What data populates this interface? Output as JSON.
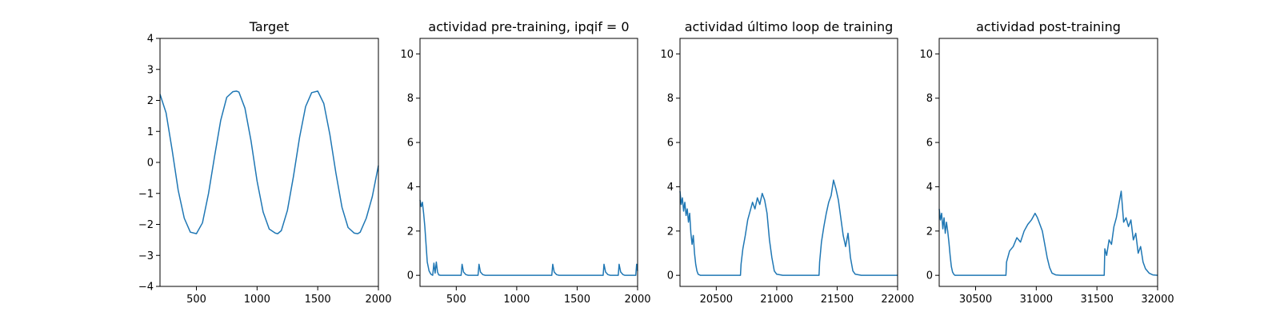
{
  "line_color": "#1f77b4",
  "chart_data": [
    {
      "type": "line",
      "title": "Target",
      "xlabel": "",
      "ylabel": "",
      "xlim": [
        200,
        2000
      ],
      "ylim": [
        -4,
        4
      ],
      "x_ticks": [
        500,
        1000,
        1500,
        2000
      ],
      "y_ticks": [
        -4,
        -3,
        -2,
        -1,
        0,
        1,
        2,
        3,
        4
      ],
      "series": [
        {
          "x": [
            200,
            250,
            300,
            350,
            400,
            450,
            500,
            550,
            600,
            650,
            700,
            750,
            800,
            830,
            850,
            900,
            950,
            1000,
            1050,
            1100,
            1150,
            1170,
            1200,
            1250,
            1300,
            1350,
            1400,
            1450,
            1500,
            1550,
            1600,
            1650,
            1700,
            1750,
            1800,
            1830,
            1850,
            1900,
            1950,
            2000
          ],
          "y": [
            2.2,
            1.6,
            0.4,
            -0.9,
            -1.8,
            -2.25,
            -2.3,
            -1.95,
            -1.0,
            0.2,
            1.35,
            2.1,
            2.28,
            2.3,
            2.27,
            1.75,
            0.7,
            -0.6,
            -1.6,
            -2.15,
            -2.28,
            -2.3,
            -2.2,
            -1.55,
            -0.45,
            0.8,
            1.8,
            2.25,
            2.3,
            1.9,
            0.9,
            -0.35,
            -1.45,
            -2.1,
            -2.28,
            -2.3,
            -2.25,
            -1.8,
            -1.1,
            -0.1
          ]
        }
      ]
    },
    {
      "type": "line",
      "title": "actividad pre-training, ipqif = 0",
      "xlabel": "",
      "ylabel": "",
      "xlim": [
        200,
        2000
      ],
      "ylim": [
        -0.5,
        10.7
      ],
      "x_ticks": [
        500,
        1000,
        1500,
        2000
      ],
      "y_ticks": [
        0,
        2,
        4,
        6,
        8,
        10
      ],
      "series": [
        {
          "x": [
            200,
            210,
            220,
            230,
            240,
            250,
            260,
            275,
            290,
            305,
            315,
            325,
            335,
            345,
            355,
            370,
            540,
            548,
            560,
            580,
            600,
            680,
            688,
            700,
            720,
            740,
            1290,
            1298,
            1310,
            1330,
            1350,
            1715,
            1722,
            1735,
            1755,
            1775,
            1840,
            1847,
            1860,
            1880,
            1895,
            1985,
            1992,
            2000
          ],
          "y": [
            3.4,
            3.1,
            3.3,
            2.8,
            2.2,
            1.4,
            0.6,
            0.2,
            0.05,
            0.0,
            0.55,
            0.1,
            0.6,
            0.15,
            0.02,
            0.0,
            0.0,
            0.5,
            0.15,
            0.03,
            0.0,
            0.0,
            0.5,
            0.15,
            0.03,
            0.0,
            0.0,
            0.5,
            0.15,
            0.03,
            0.0,
            0.0,
            0.5,
            0.15,
            0.03,
            0.0,
            0.0,
            0.5,
            0.15,
            0.03,
            0.0,
            0.0,
            0.5,
            0.2
          ]
        }
      ]
    },
    {
      "type": "line",
      "title": "actividad último loop de training",
      "xlabel": "",
      "ylabel": "",
      "xlim": [
        20200,
        22000
      ],
      "ylim": [
        -0.5,
        10.7
      ],
      "x_ticks": [
        20500,
        21000,
        21500,
        22000
      ],
      "y_ticks": [
        0,
        2,
        4,
        6,
        8,
        10
      ],
      "series": [
        {
          "x": [
            20200,
            20210,
            20220,
            20230,
            20240,
            20250,
            20260,
            20270,
            20280,
            20290,
            20300,
            20310,
            20320,
            20330,
            20340,
            20350,
            20370,
            20400,
            20500,
            20700,
            20705,
            20720,
            20740,
            20760,
            20780,
            20800,
            20820,
            20840,
            20860,
            20880,
            20900,
            20920,
            20940,
            20960,
            20980,
            21000,
            21050,
            21100,
            21350,
            21355,
            21370,
            21390,
            21410,
            21430,
            21450,
            21470,
            21490,
            21510,
            21530,
            21550,
            21570,
            21590,
            21610,
            21630,
            21650,
            21700,
            21750,
            22000
          ],
          "y": [
            3.8,
            3.2,
            3.5,
            2.9,
            3.3,
            2.7,
            3.0,
            2.4,
            2.8,
            1.9,
            1.4,
            1.8,
            1.0,
            0.5,
            0.2,
            0.05,
            0.0,
            0.0,
            0.0,
            0.0,
            0.5,
            1.2,
            1.8,
            2.5,
            2.9,
            3.3,
            3.0,
            3.5,
            3.2,
            3.7,
            3.4,
            2.8,
            1.6,
            0.8,
            0.2,
            0.05,
            0.0,
            0.0,
            0.0,
            0.6,
            1.5,
            2.2,
            2.8,
            3.3,
            3.6,
            4.3,
            3.9,
            3.4,
            2.6,
            1.8,
            1.3,
            1.9,
            0.8,
            0.2,
            0.05,
            0.0,
            0.0,
            0.0
          ]
        }
      ]
    },
    {
      "type": "line",
      "title": "actividad post-training",
      "xlabel": "",
      "ylabel": "",
      "xlim": [
        30200,
        32000
      ],
      "ylim": [
        -0.5,
        10.7
      ],
      "x_ticks": [
        30500,
        31000,
        31500,
        32000
      ],
      "y_ticks": [
        0,
        2,
        4,
        6,
        8,
        10
      ],
      "series": [
        {
          "x": [
            30200,
            30210,
            30220,
            30230,
            30240,
            30250,
            30260,
            30270,
            30280,
            30290,
            30300,
            30310,
            30320,
            30330,
            30350,
            30400,
            30750,
            30755,
            30780,
            30810,
            30840,
            30870,
            30900,
            30930,
            30960,
            30990,
            31010,
            31030,
            31050,
            31070,
            31090,
            31110,
            31130,
            31160,
            31200,
            31560,
            31565,
            31580,
            31600,
            31620,
            31640,
            31660,
            31680,
            31700,
            31720,
            31740,
            31760,
            31780,
            31800,
            31820,
            31840,
            31860,
            31880,
            31900,
            31930,
            31960,
            32000
          ],
          "y": [
            3.0,
            2.5,
            2.8,
            2.1,
            2.6,
            1.9,
            2.4,
            2.0,
            1.5,
            0.9,
            0.4,
            0.15,
            0.05,
            0.0,
            0.0,
            0.0,
            0.0,
            0.6,
            1.1,
            1.3,
            1.7,
            1.5,
            2.0,
            2.3,
            2.5,
            2.8,
            2.6,
            2.3,
            2.0,
            1.4,
            0.8,
            0.35,
            0.1,
            0.02,
            0.0,
            0.0,
            1.2,
            0.9,
            1.6,
            1.4,
            2.2,
            2.6,
            3.2,
            3.8,
            2.4,
            2.6,
            2.2,
            2.5,
            1.6,
            1.9,
            1.0,
            1.3,
            0.6,
            0.3,
            0.1,
            0.02,
            0.0
          ]
        }
      ]
    }
  ]
}
